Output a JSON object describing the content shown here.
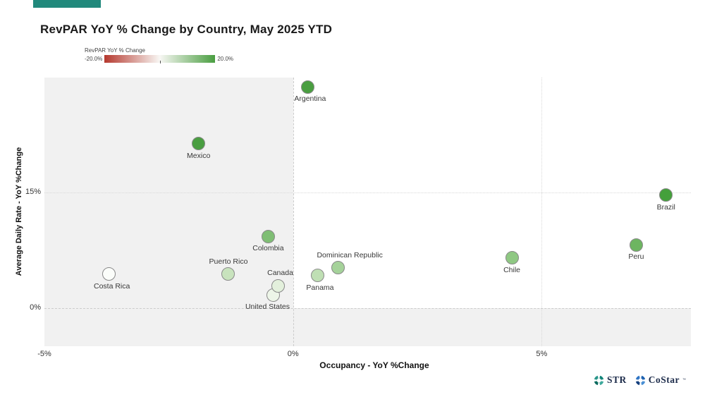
{
  "page": {
    "brand_bar_color": "#21897c"
  },
  "legend": {
    "title": "RevPAR YoY % Change",
    "min_label": "-20.0%",
    "max_label": "20.0%",
    "gradient": [
      "#b5382e",
      "#f8f7f4",
      "#4a9e41"
    ]
  },
  "chart_data": {
    "type": "scatter",
    "title": "RevPAR YoY % Change by Country, May 2025 YTD",
    "xlabel": "Occupancy - YoY %Change",
    "ylabel": "Average Daily Rate - YoY %Change",
    "xlim": [
      -5,
      8
    ],
    "ylim": [
      -5,
      30
    ],
    "x_ticks": [
      {
        "value": -5,
        "label": "-5%"
      },
      {
        "value": 0,
        "label": "0%"
      },
      {
        "value": 5,
        "label": "5%"
      }
    ],
    "y_ticks": [
      {
        "value": 0,
        "label": "0%"
      },
      {
        "value": 15,
        "label": "15%"
      }
    ],
    "negative_region_shade": "#f1f1f1",
    "color_scale": {
      "label": "RevPAR YoY % Change",
      "min": -20.0,
      "max": 20.0
    },
    "points": [
      {
        "name": "Argentina",
        "x": 0.3,
        "y": 28.8,
        "color": "#4a9e41",
        "label_pos": "below",
        "label_dx": 3
      },
      {
        "name": "Mexico",
        "x": -1.9,
        "y": 21.4,
        "color": "#4a9e41",
        "label_pos": "below",
        "label_dx": 0
      },
      {
        "name": "Brazil",
        "x": 7.5,
        "y": 14.7,
        "color": "#44a03b",
        "label_pos": "below",
        "label_dx": 0
      },
      {
        "name": "Colombia",
        "x": -0.5,
        "y": 9.3,
        "color": "#7fbe74",
        "label_pos": "below",
        "label_dx": 0
      },
      {
        "name": "Peru",
        "x": 6.9,
        "y": 8.2,
        "color": "#6db561",
        "label_pos": "below",
        "label_dx": 0
      },
      {
        "name": "Chile",
        "x": 4.4,
        "y": 6.5,
        "color": "#8fc883",
        "label_pos": "below",
        "label_dx": 0
      },
      {
        "name": "Dominican Republic",
        "x": 0.9,
        "y": 5.2,
        "color": "#a5d29a",
        "label_pos": "above",
        "label_dx": 17
      },
      {
        "name": "Puerto Rico",
        "x": -1.3,
        "y": 4.4,
        "color": "#c8e3bd",
        "label_pos": "above",
        "label_dx": 0
      },
      {
        "name": "Costa Rica",
        "x": -3.7,
        "y": 4.4,
        "color": "#fbfdfa",
        "label_pos": "below",
        "label_dx": 4
      },
      {
        "name": "Panama",
        "x": 0.5,
        "y": 4.2,
        "color": "#bfdfb4",
        "label_pos": "below",
        "label_dx": 3
      },
      {
        "name": "United States",
        "x": -0.4,
        "y": 1.7,
        "color": "#edf5e8",
        "label_pos": "below",
        "label_dx": -8
      },
      {
        "name": "Canada",
        "x": -0.3,
        "y": 2.9,
        "color": "#e3f0dc",
        "label_pos": "above",
        "label_dx": 3
      }
    ]
  },
  "footer": {
    "brands": [
      {
        "label": "STR",
        "mark": ""
      },
      {
        "label": "CoStar",
        "mark": "™"
      }
    ]
  }
}
